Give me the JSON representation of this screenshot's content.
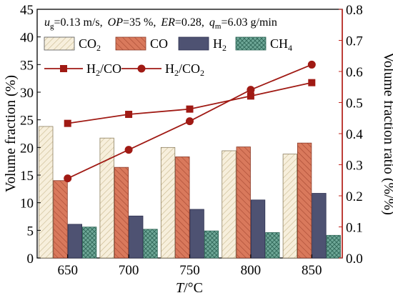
{
  "conditions": {
    "u_sym": "u",
    "u_sub": "g",
    "u_val": "=0.13 m/s,",
    "op_label": "OP",
    "op_val": "=35 %,",
    "er_label": "ER",
    "er_val": "=0.28,",
    "q_sym": "q",
    "q_sub": "m",
    "q_val": "=6.03 g/min"
  },
  "axes": {
    "xlabel_italic": "T",
    "xlabel_unit": "/°C",
    "ylabel_left": "Volume fraction (%)",
    "ylabel_right": "Volume fraction ratio (%/%)"
  },
  "legend": {
    "co2": {
      "main": "CO",
      "sub": "2"
    },
    "co": {
      "main": "CO",
      "sub": ""
    },
    "h2": {
      "main": "H",
      "sub": "2"
    },
    "ch4": {
      "main": "CH",
      "sub": "4"
    },
    "h2co": {
      "a": "H",
      "a_sub": "2",
      "b": "/CO",
      "b_sub": ""
    },
    "h2co2": {
      "a": "H",
      "a_sub": "2",
      "b": "/CO",
      "b_sub": "2"
    }
  },
  "chart_data": {
    "type": "bar",
    "categories": [
      "650",
      "700",
      "750",
      "800",
      "850"
    ],
    "xlabel": "T/°C",
    "ylabel": "Volume fraction (%)",
    "ylabel_right": "Volume fraction ratio (%/%)",
    "ylim": [
      0,
      45
    ],
    "y_ticks": [
      0,
      5,
      10,
      15,
      20,
      25,
      30,
      35,
      40,
      45
    ],
    "ylim_right": [
      0,
      0.8
    ],
    "y_ticks_right": [
      0.0,
      0.1,
      0.2,
      0.3,
      0.4,
      0.5,
      0.6,
      0.7,
      0.8
    ],
    "legend_position": "top-left",
    "series": [
      {
        "name": "CO2",
        "axis": "left",
        "kind": "bar",
        "color": "#f7efdc",
        "pattern": "diag-light",
        "values": [
          23.8,
          21.7,
          20.0,
          19.4,
          18.8
        ]
      },
      {
        "name": "CO",
        "axis": "left",
        "kind": "bar",
        "color": "#d9795c",
        "pattern": "diag-dark",
        "values": [
          14.0,
          16.4,
          18.3,
          20.1,
          20.8
        ]
      },
      {
        "name": "H2",
        "axis": "left",
        "kind": "bar",
        "color": "#4e5272",
        "pattern": "none",
        "values": [
          6.1,
          7.6,
          8.8,
          10.5,
          11.7
        ]
      },
      {
        "name": "CH4",
        "axis": "left",
        "kind": "bar",
        "color": "#6fa898",
        "pattern": "crosshatch",
        "values": [
          5.6,
          5.2,
          4.9,
          4.6,
          4.1
        ]
      },
      {
        "name": "H2/CO",
        "axis": "right",
        "kind": "line",
        "marker": "square",
        "color": "#a01a14",
        "values": [
          0.433,
          0.462,
          0.479,
          0.521,
          0.564
        ]
      },
      {
        "name": "H2/CO2",
        "axis": "right",
        "kind": "line",
        "marker": "circle",
        "color": "#a01a14",
        "values": [
          0.256,
          0.348,
          0.44,
          0.541,
          0.622
        ]
      }
    ]
  }
}
